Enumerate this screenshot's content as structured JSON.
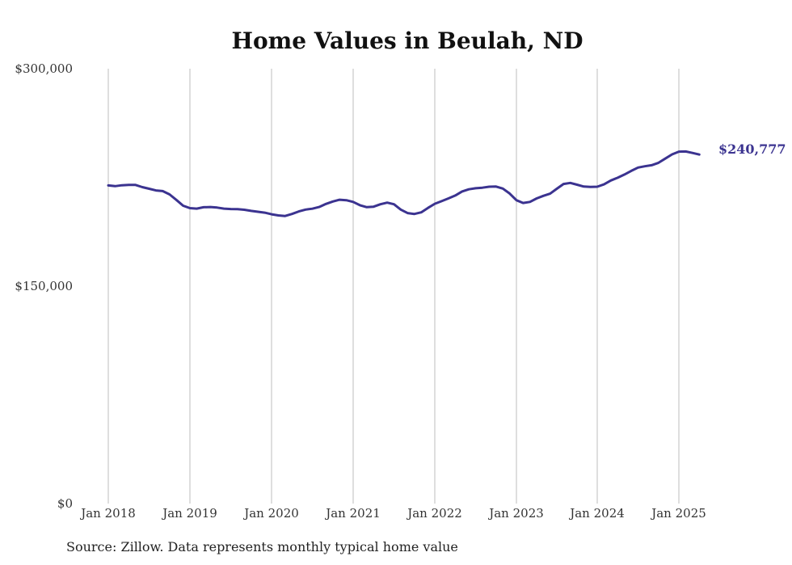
{
  "chart_data": {
    "type": "line",
    "title": "Home Values in Beulah, ND",
    "xlabel": "",
    "ylabel": "",
    "ylim": [
      0,
      300000
    ],
    "y_ticks": [
      0,
      150000,
      300000
    ],
    "y_tick_labels": [
      "$0",
      "$150,000",
      "$300,000"
    ],
    "x_ticks": [
      "2018-01",
      "2019-01",
      "2020-01",
      "2021-01",
      "2022-01",
      "2023-01",
      "2024-01",
      "2025-01"
    ],
    "x_tick_labels": [
      "Jan 2018",
      "Jan 2019",
      "Jan 2020",
      "Jan 2021",
      "Jan 2022",
      "Jan 2023",
      "Jan 2024",
      "Jan 2025"
    ],
    "grid": "vertical",
    "line_color": "#3b3390",
    "end_label": "$240,777",
    "series": [
      {
        "points": [
          [
            "2018-01",
            219500
          ],
          [
            "2018-02",
            219000
          ],
          [
            "2018-03",
            219600
          ],
          [
            "2018-04",
            219800
          ],
          [
            "2018-05",
            219800
          ],
          [
            "2018-06",
            218300
          ],
          [
            "2018-07",
            217200
          ],
          [
            "2018-08",
            216000
          ],
          [
            "2018-09",
            215600
          ],
          [
            "2018-10",
            213300
          ],
          [
            "2018-11",
            209500
          ],
          [
            "2018-12",
            205500
          ],
          [
            "2019-01",
            203800
          ],
          [
            "2019-02",
            203500
          ],
          [
            "2019-03",
            204400
          ],
          [
            "2019-04",
            204600
          ],
          [
            "2019-05",
            204200
          ],
          [
            "2019-06",
            203500
          ],
          [
            "2019-07",
            203200
          ],
          [
            "2019-08",
            203100
          ],
          [
            "2019-09",
            202700
          ],
          [
            "2019-10",
            201900
          ],
          [
            "2019-11",
            201300
          ],
          [
            "2019-12",
            200700
          ],
          [
            "2020-01",
            199600
          ],
          [
            "2020-02",
            198800
          ],
          [
            "2020-03",
            198400
          ],
          [
            "2020-04",
            199800
          ],
          [
            "2020-05",
            201500
          ],
          [
            "2020-06",
            202800
          ],
          [
            "2020-07",
            203400
          ],
          [
            "2020-08",
            204600
          ],
          [
            "2020-09",
            206700
          ],
          [
            "2020-10",
            208400
          ],
          [
            "2020-11",
            209600
          ],
          [
            "2020-12",
            209300
          ],
          [
            "2021-01",
            208100
          ],
          [
            "2021-02",
            205800
          ],
          [
            "2021-03",
            204500
          ],
          [
            "2021-04",
            204800
          ],
          [
            "2021-05",
            206500
          ],
          [
            "2021-06",
            207600
          ],
          [
            "2021-07",
            206500
          ],
          [
            "2021-08",
            202800
          ],
          [
            "2021-09",
            200400
          ],
          [
            "2021-10",
            199800
          ],
          [
            "2021-11",
            200900
          ],
          [
            "2021-12",
            204000
          ],
          [
            "2022-01",
            206800
          ],
          [
            "2022-02",
            208600
          ],
          [
            "2022-03",
            210500
          ],
          [
            "2022-04",
            212500
          ],
          [
            "2022-05",
            215300
          ],
          [
            "2022-06",
            216800
          ],
          [
            "2022-07",
            217500
          ],
          [
            "2022-08",
            217900
          ],
          [
            "2022-09",
            218600
          ],
          [
            "2022-10",
            218700
          ],
          [
            "2022-11",
            217300
          ],
          [
            "2022-12",
            213900
          ],
          [
            "2023-01",
            209300
          ],
          [
            "2023-02",
            207400
          ],
          [
            "2023-03",
            208100
          ],
          [
            "2023-04",
            210500
          ],
          [
            "2023-05",
            212300
          ],
          [
            "2023-06",
            213800
          ],
          [
            "2023-07",
            217200
          ],
          [
            "2023-08",
            220500
          ],
          [
            "2023-09",
            221200
          ],
          [
            "2023-10",
            220000
          ],
          [
            "2023-11",
            218700
          ],
          [
            "2023-12",
            218500
          ],
          [
            "2024-01",
            218600
          ],
          [
            "2024-02",
            220200
          ],
          [
            "2024-03",
            222900
          ],
          [
            "2024-04",
            224800
          ],
          [
            "2024-05",
            227000
          ],
          [
            "2024-06",
            229500
          ],
          [
            "2024-07",
            231800
          ],
          [
            "2024-08",
            232700
          ],
          [
            "2024-09",
            233400
          ],
          [
            "2024-10",
            235100
          ],
          [
            "2024-11",
            238000
          ],
          [
            "2024-12",
            240900
          ],
          [
            "2025-01",
            242800
          ],
          [
            "2025-02",
            242900
          ],
          [
            "2025-03",
            241900
          ],
          [
            "2025-04",
            240777
          ]
        ]
      }
    ]
  },
  "source": "Source: Zillow. Data represents monthly typical home value"
}
